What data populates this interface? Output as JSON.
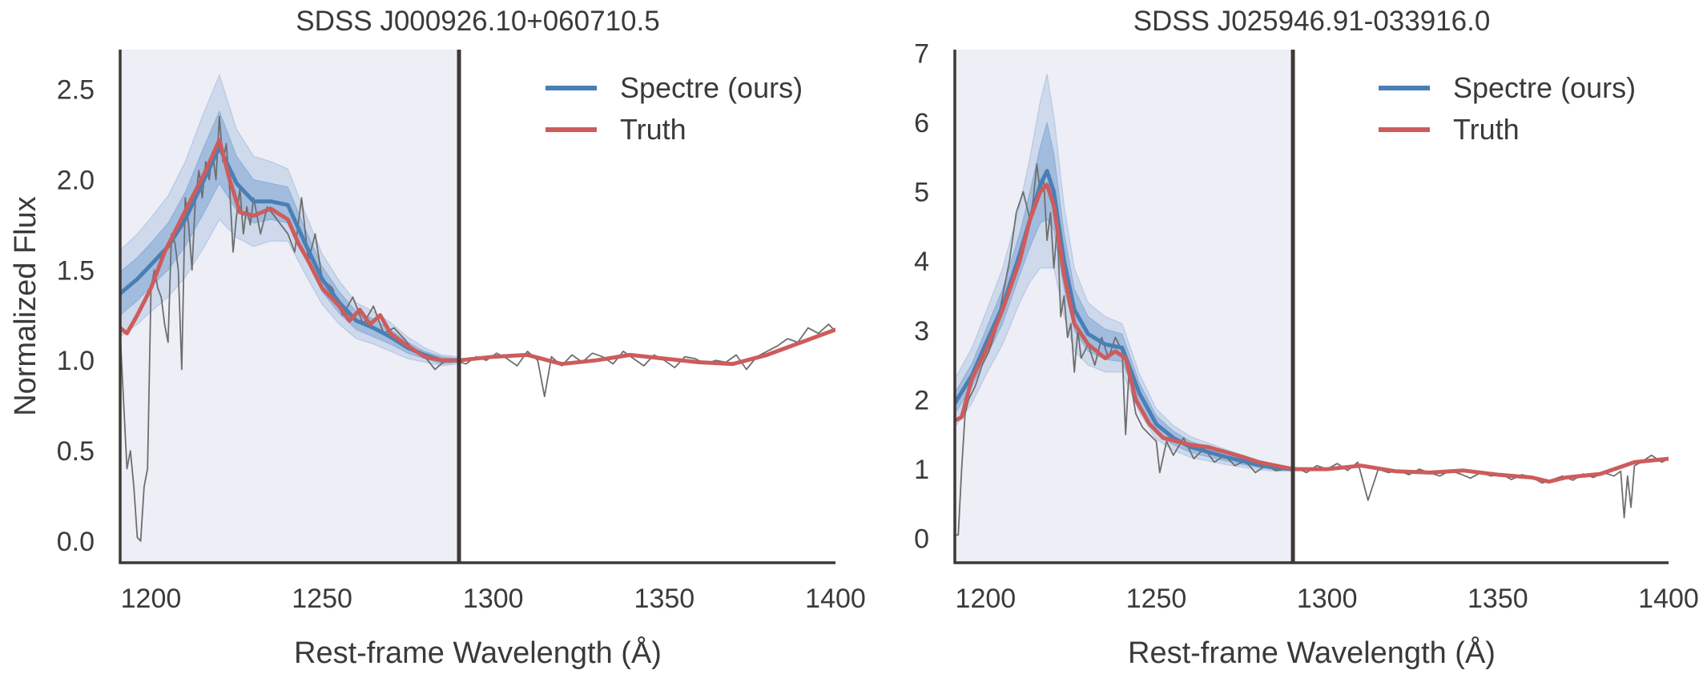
{
  "chart_data": [
    {
      "type": "line",
      "title": "SDSS J000926.10+060710.5",
      "xlabel": "Rest-frame Wavelength (Å)",
      "ylabel": "Normalized Flux",
      "xlim": [
        1191,
        1400
      ],
      "ylim": [
        -0.12,
        2.72
      ],
      "xticks": [
        1200,
        1250,
        1300,
        1350,
        1400
      ],
      "xtick_labels": [
        "1200",
        "1250",
        "1300",
        "1350",
        "1400"
      ],
      "yticks": [
        0.0,
        0.5,
        1.0,
        1.5,
        2.0,
        2.5
      ],
      "ytick_labels": [
        "0.0",
        "0.5",
        "1.0",
        "1.5",
        "2.0",
        "2.5"
      ],
      "shaded_region": [
        1191,
        1290
      ],
      "vline": 1290,
      "legend": {
        "position": "top-right",
        "entries": [
          "Spectre (ours)",
          "Truth"
        ]
      },
      "colors": {
        "spectre": "#4a7fb5",
        "truth": "#cd5c5c",
        "observed": "#6e6e6e",
        "band": "#4f86c6",
        "shade": "#eeeef6",
        "axes": "#3f3835"
      },
      "spectre": {
        "x": [
          1191,
          1196,
          1200,
          1205,
          1210,
          1215,
          1220,
          1225,
          1230,
          1235,
          1240,
          1245,
          1250,
          1255,
          1260,
          1265,
          1270,
          1275,
          1280,
          1285,
          1290
        ],
        "y": [
          1.37,
          1.45,
          1.53,
          1.63,
          1.78,
          1.98,
          2.18,
          1.98,
          1.88,
          1.88,
          1.86,
          1.65,
          1.45,
          1.32,
          1.22,
          1.18,
          1.13,
          1.07,
          1.03,
          1.0,
          1.0
        ],
        "band_inner": [
          0.12,
          0.12,
          0.12,
          0.13,
          0.15,
          0.18,
          0.2,
          0.15,
          0.12,
          0.1,
          0.1,
          0.08,
          0.07,
          0.06,
          0.05,
          0.05,
          0.04,
          0.03,
          0.02,
          0.02,
          0.01
        ],
        "band_outer": [
          0.24,
          0.25,
          0.26,
          0.28,
          0.32,
          0.37,
          0.4,
          0.3,
          0.25,
          0.22,
          0.2,
          0.17,
          0.14,
          0.12,
          0.1,
          0.09,
          0.08,
          0.06,
          0.04,
          0.03,
          0.02
        ]
      },
      "truth": {
        "x": [
          1191,
          1193,
          1196,
          1200,
          1204,
          1208,
          1212,
          1216,
          1220,
          1223,
          1226,
          1230,
          1235,
          1240,
          1243,
          1246,
          1250,
          1255,
          1258,
          1261,
          1264,
          1267,
          1270,
          1275,
          1280,
          1285,
          1290,
          1300,
          1310,
          1320,
          1330,
          1340,
          1350,
          1360,
          1370,
          1380,
          1390,
          1400
        ],
        "y": [
          1.18,
          1.15,
          1.25,
          1.4,
          1.6,
          1.75,
          1.9,
          2.05,
          2.22,
          2.0,
          1.82,
          1.8,
          1.84,
          1.78,
          1.65,
          1.55,
          1.4,
          1.3,
          1.22,
          1.28,
          1.2,
          1.25,
          1.15,
          1.08,
          1.02,
          1.0,
          1.0,
          1.02,
          1.03,
          0.98,
          1.0,
          1.03,
          1.01,
          0.99,
          0.98,
          1.03,
          1.1,
          1.17
        ]
      },
      "observed": {
        "x": [
          1191,
          1193,
          1194,
          1195,
          1196,
          1197,
          1198,
          1199,
          1200,
          1201,
          1202,
          1203,
          1204,
          1205,
          1206,
          1207,
          1208,
          1209,
          1210,
          1211,
          1212,
          1213,
          1214,
          1215,
          1216,
          1217,
          1218,
          1219,
          1220,
          1221,
          1222,
          1223,
          1224,
          1225,
          1226,
          1227,
          1228,
          1229,
          1230,
          1232,
          1234,
          1236,
          1238,
          1240,
          1242,
          1244,
          1246,
          1248,
          1250,
          1253,
          1256,
          1259,
          1262,
          1265,
          1268,
          1271,
          1274,
          1277,
          1280,
          1283,
          1286,
          1289,
          1292,
          1295,
          1298,
          1301,
          1304,
          1307,
          1310,
          1313,
          1315,
          1317,
          1320,
          1323,
          1326,
          1329,
          1332,
          1335,
          1338,
          1341,
          1344,
          1347,
          1350,
          1353,
          1356,
          1359,
          1362,
          1365,
          1368,
          1371,
          1374,
          1377,
          1380,
          1383,
          1386,
          1389,
          1392,
          1395,
          1398,
          1400
        ],
        "y": [
          1.15,
          0.4,
          0.5,
          0.3,
          0.02,
          0.0,
          0.3,
          0.4,
          1.4,
          1.5,
          1.4,
          1.35,
          1.2,
          1.1,
          1.7,
          1.65,
          1.5,
          0.95,
          1.9,
          1.75,
          1.5,
          1.9,
          2.05,
          1.9,
          2.1,
          2.0,
          2.15,
          2.0,
          2.35,
          2.1,
          2.2,
          1.95,
          1.6,
          1.8,
          1.95,
          1.7,
          1.85,
          1.75,
          1.9,
          1.7,
          1.85,
          1.8,
          1.75,
          1.7,
          1.6,
          1.9,
          1.55,
          1.7,
          1.45,
          1.4,
          1.25,
          1.35,
          1.2,
          1.3,
          1.15,
          1.18,
          1.12,
          1.05,
          1.02,
          0.95,
          1.0,
          1.0,
          0.98,
          1.02,
          1.0,
          1.04,
          1.01,
          0.97,
          1.05,
          1.0,
          0.8,
          1.02,
          0.97,
          1.03,
          0.99,
          1.04,
          1.02,
          0.98,
          1.05,
          1.01,
          0.97,
          1.03,
          1.0,
          0.96,
          1.02,
          1.01,
          0.98,
          1.0,
          0.99,
          1.03,
          0.95,
          1.02,
          1.05,
          1.08,
          1.12,
          1.1,
          1.18,
          1.15,
          1.2,
          1.16
        ]
      }
    },
    {
      "type": "line",
      "title": "SDSS J025946.91-033916.0",
      "xlabel": "Rest-frame Wavelength (Å)",
      "ylabel": "",
      "xlim": [
        1191,
        1400
      ],
      "ylim": [
        -0.35,
        7.05
      ],
      "xticks": [
        1200,
        1250,
        1300,
        1350,
        1400
      ],
      "xtick_labels": [
        "1200",
        "1250",
        "1300",
        "1350",
        "1400"
      ],
      "yticks": [
        0,
        1,
        2,
        3,
        4,
        5,
        6,
        7
      ],
      "ytick_labels": [
        "0",
        "1",
        "2",
        "3",
        "4",
        "5",
        "6",
        "7"
      ],
      "shaded_region": [
        1191,
        1290
      ],
      "vline": 1290,
      "legend": {
        "position": "top-right",
        "entries": [
          "Spectre (ours)",
          "Truth"
        ]
      },
      "colors": {
        "spectre": "#4a7fb5",
        "truth": "#cd5c5c",
        "observed": "#6e6e6e",
        "band": "#4f86c6",
        "shade": "#eeeef6",
        "axes": "#3f3835"
      },
      "spectre": {
        "x": [
          1191,
          1196,
          1200,
          1205,
          1210,
          1213,
          1216,
          1218,
          1220,
          1223,
          1226,
          1230,
          1235,
          1240,
          1245,
          1250,
          1255,
          1260,
          1265,
          1270,
          1275,
          1280,
          1285,
          1290
        ],
        "y": [
          1.95,
          2.35,
          2.8,
          3.35,
          4.1,
          4.6,
          5.1,
          5.3,
          5.0,
          4.0,
          3.3,
          2.95,
          2.8,
          2.75,
          2.1,
          1.65,
          1.45,
          1.32,
          1.25,
          1.18,
          1.12,
          1.06,
          1.02,
          1.0
        ],
        "band_inner": [
          0.15,
          0.17,
          0.2,
          0.25,
          0.3,
          0.4,
          0.55,
          0.7,
          0.55,
          0.4,
          0.3,
          0.25,
          0.22,
          0.2,
          0.15,
          0.12,
          0.1,
          0.08,
          0.07,
          0.06,
          0.05,
          0.04,
          0.03,
          0.02
        ],
        "band_outer": [
          0.35,
          0.4,
          0.45,
          0.55,
          0.7,
          0.9,
          1.2,
          1.4,
          1.1,
          0.8,
          0.6,
          0.45,
          0.4,
          0.35,
          0.28,
          0.22,
          0.18,
          0.15,
          0.13,
          0.11,
          0.09,
          0.07,
          0.05,
          0.03
        ]
      },
      "truth": {
        "x": [
          1191,
          1193,
          1196,
          1200,
          1205,
          1210,
          1213,
          1216,
          1218,
          1220,
          1223,
          1226,
          1230,
          1235,
          1238,
          1241,
          1244,
          1248,
          1252,
          1256,
          1260,
          1265,
          1270,
          1275,
          1280,
          1285,
          1290,
          1300,
          1310,
          1320,
          1330,
          1340,
          1350,
          1360,
          1365,
          1370,
          1380,
          1390,
          1400
        ],
        "y": [
          1.7,
          1.75,
          2.3,
          2.7,
          3.3,
          4.0,
          4.6,
          5.0,
          5.1,
          4.8,
          3.8,
          3.1,
          2.8,
          2.6,
          2.7,
          2.6,
          2.0,
          1.65,
          1.45,
          1.4,
          1.35,
          1.32,
          1.25,
          1.18,
          1.1,
          1.05,
          1.0,
          1.0,
          1.05,
          0.97,
          0.95,
          0.98,
          0.92,
          0.88,
          0.82,
          0.88,
          0.93,
          1.1,
          1.15
        ]
      },
      "observed": {
        "x": [
          1191,
          1192,
          1193,
          1194,
          1195,
          1197,
          1199,
          1201,
          1203,
          1205,
          1207,
          1209,
          1211,
          1213,
          1214,
          1215,
          1216,
          1217,
          1218,
          1219,
          1220,
          1221,
          1222,
          1223,
          1224,
          1225,
          1226,
          1227,
          1228,
          1230,
          1232,
          1234,
          1236,
          1238,
          1240,
          1241,
          1242,
          1244,
          1246,
          1248,
          1250,
          1251,
          1253,
          1255,
          1258,
          1261,
          1264,
          1267,
          1270,
          1273,
          1276,
          1279,
          1282,
          1285,
          1288,
          1291,
          1294,
          1297,
          1300,
          1303,
          1306,
          1309,
          1312,
          1315,
          1318,
          1321,
          1324,
          1327,
          1330,
          1333,
          1336,
          1339,
          1342,
          1345,
          1348,
          1351,
          1354,
          1357,
          1360,
          1363,
          1366,
          1369,
          1372,
          1375,
          1378,
          1381,
          1384,
          1386,
          1387,
          1388,
          1389,
          1390,
          1392,
          1395,
          1398,
          1400
        ],
        "y": [
          0.05,
          0.05,
          1.0,
          1.8,
          2.0,
          2.2,
          2.5,
          2.7,
          3.0,
          3.5,
          4.0,
          4.7,
          5.0,
          4.6,
          4.9,
          5.4,
          5.0,
          5.2,
          4.3,
          4.7,
          3.9,
          4.5,
          3.2,
          3.5,
          2.9,
          3.1,
          2.4,
          3.0,
          2.6,
          2.8,
          2.5,
          2.9,
          2.6,
          2.9,
          2.7,
          1.5,
          2.4,
          1.8,
          1.6,
          1.5,
          1.4,
          0.95,
          1.4,
          1.2,
          1.45,
          1.15,
          1.3,
          1.1,
          1.2,
          1.05,
          1.12,
          0.95,
          1.05,
          0.98,
          1.0,
          1.02,
          0.95,
          1.05,
          1.0,
          1.08,
          0.98,
          1.1,
          0.55,
          1.0,
          0.95,
          0.98,
          0.92,
          1.0,
          0.95,
          0.9,
          0.98,
          0.93,
          0.87,
          0.95,
          0.9,
          0.93,
          0.85,
          0.92,
          0.88,
          0.8,
          0.85,
          0.9,
          0.84,
          0.93,
          0.88,
          0.95,
          0.9,
          0.97,
          0.3,
          0.9,
          0.45,
          1.05,
          1.1,
          1.2,
          1.1,
          1.15
        ]
      }
    }
  ]
}
